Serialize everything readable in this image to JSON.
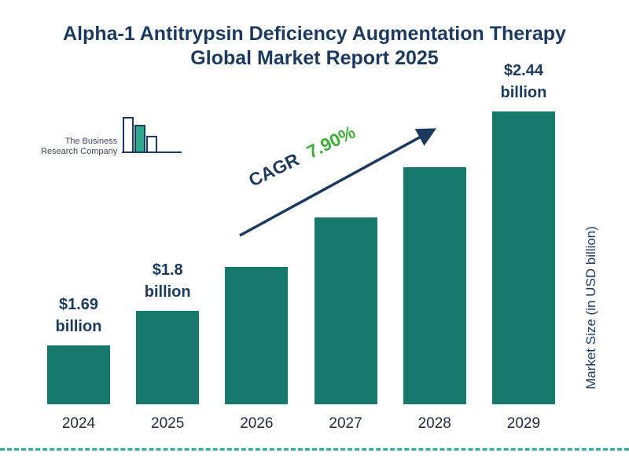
{
  "page": {
    "title": "Alpha-1 Antitrypsin Deficiency Augmentation Therapy Global Market Report 2025"
  },
  "logo": {
    "line1": "The Business",
    "line2": "Research Company"
  },
  "cagr": {
    "label": "CAGR",
    "value": "7.90%"
  },
  "colors": {
    "bar": "#17796c",
    "navy": "#1c3a5e",
    "green": "#3fae3a",
    "teal_dash": "#2ea9a4"
  },
  "chart_data": {
    "type": "bar",
    "title": "Alpha-1 Antitrypsin Deficiency Augmentation Therapy Global Market Report 2025",
    "categories": [
      "2024",
      "2025",
      "2026",
      "2027",
      "2028",
      "2029"
    ],
    "values": [
      1.69,
      1.8,
      1.94,
      2.1,
      2.26,
      2.44
    ],
    "bar_labels": [
      "$1.69 billion",
      "$1.8 billion",
      "",
      "",
      "",
      "$2.44 billion"
    ],
    "xlabel": "",
    "ylabel": "Market Size (in USD billion)",
    "ylim": [
      1.5,
      2.44
    ],
    "grid": false,
    "legend": false,
    "annotations": {
      "cagr_label": "CAGR",
      "cagr_value": "7.90%"
    }
  }
}
